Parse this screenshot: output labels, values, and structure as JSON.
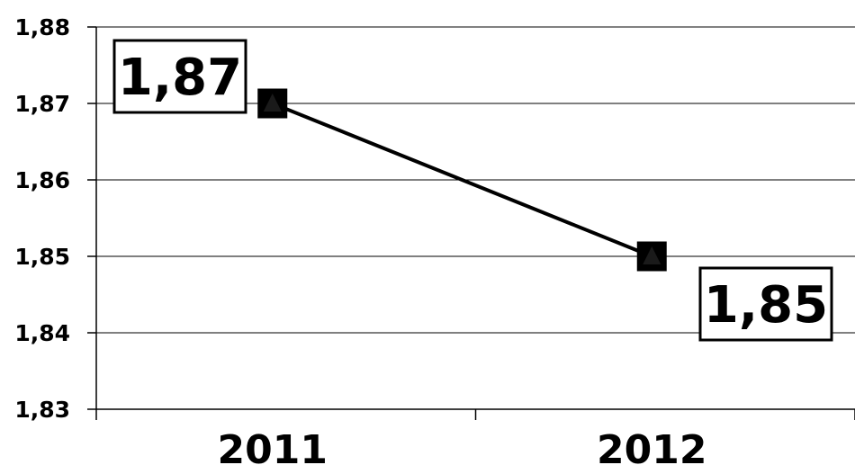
{
  "chart_data": {
    "type": "line",
    "title": "",
    "xlabel": "",
    "ylabel": "",
    "categories": [
      "2011",
      "2012"
    ],
    "series": [
      {
        "values": [
          1.87,
          1.85
        ],
        "data_labels": [
          "1,87",
          "1,85"
        ]
      }
    ],
    "ylim": [
      1.83,
      1.88
    ],
    "yticks": [
      {
        "value": 1.83,
        "label": "1,83"
      },
      {
        "value": 1.84,
        "label": "1,84"
      },
      {
        "value": 1.85,
        "label": "1,85"
      },
      {
        "value": 1.86,
        "label": "1,86"
      },
      {
        "value": 1.87,
        "label": "1,87"
      },
      {
        "value": 1.88,
        "label": "1,88"
      }
    ],
    "grid": true,
    "legend": "none",
    "marker": "square-with-triangle",
    "colors": {
      "line": "#000000",
      "marker": "#000000",
      "background": "#ffffff"
    }
  }
}
